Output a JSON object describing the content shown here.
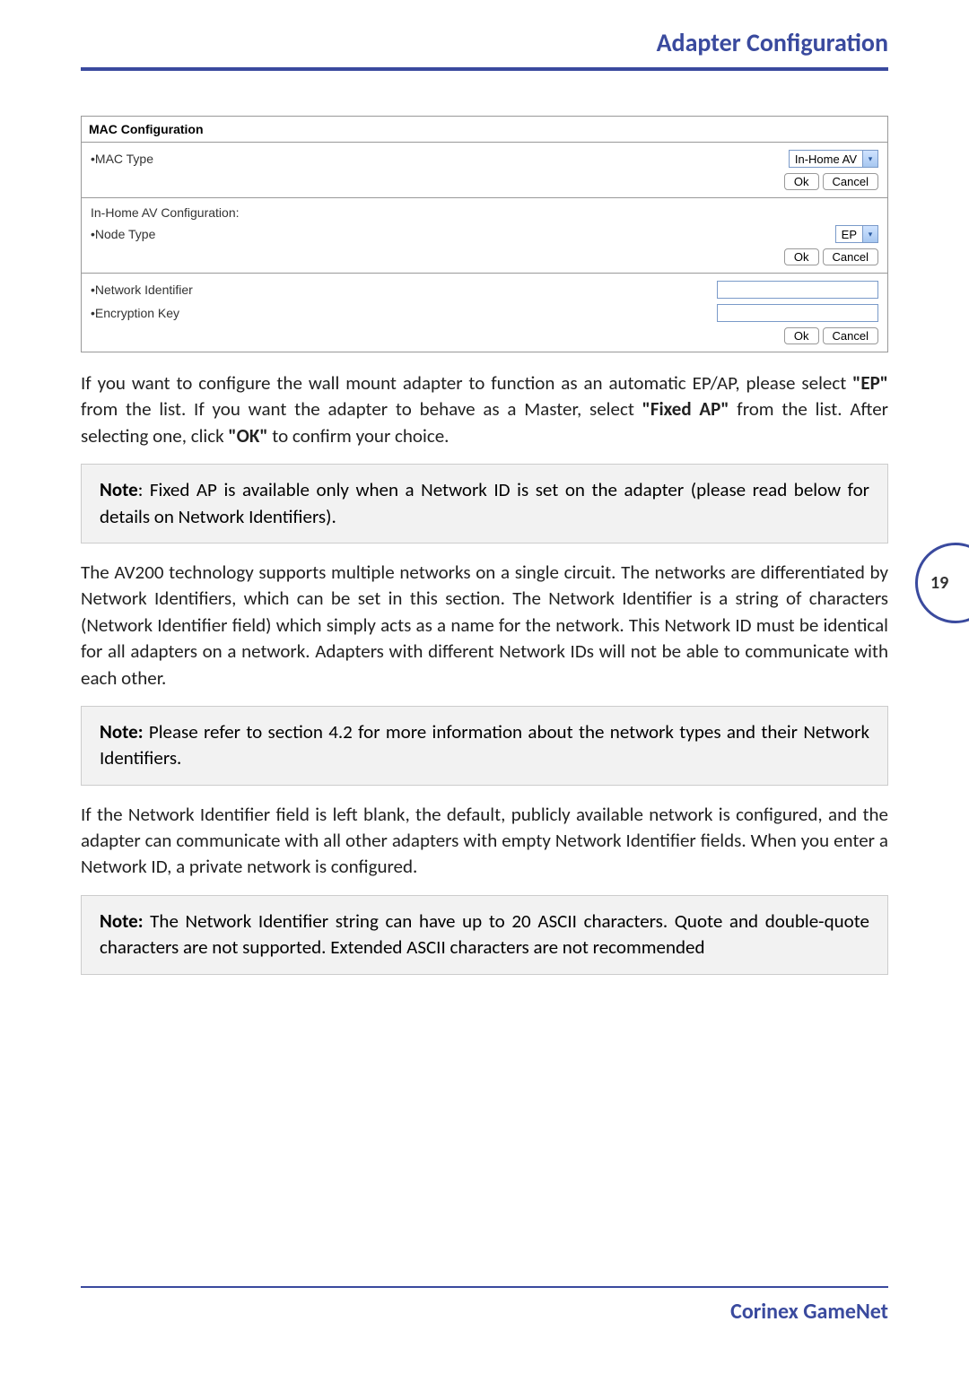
{
  "header": {
    "title": "Adapter Configuration"
  },
  "mac_panel": {
    "title": "MAC Configuration",
    "mac_type_label": "•MAC Type",
    "mac_type_value": "In-Home AV",
    "subsection_label": "In-Home AV Configuration:",
    "node_type_label": "•Node Type",
    "node_type_value": "EP",
    "network_id_label": "•Network Identifier",
    "encryption_key_label": "•Encryption Key",
    "ok_label": "Ok",
    "cancel_label": "Cancel"
  },
  "paragraphs": {
    "p1_a": "If you want to configure the wall mount adapter to function as an automatic EP/AP, please select ",
    "p1_b": "\"EP\"",
    "p1_c": " from the list. If you want the adapter to behave as a Master, select ",
    "p1_d": "\"Fixed AP\"",
    "p1_e": " from the list. After selecting one, click ",
    "p1_f": "\"OK\"",
    "p1_g": " to confirm your choice.",
    "note1_bold": "Note",
    "note1_text": ": Fixed AP is available only when a Network ID is set on the adapter (please read below for details on Network Identifiers).",
    "p2": "The AV200 technology supports multiple networks on a single circuit. The networks are differentiated by Network Identifiers, which can be set in this section. The Network Identifier is a string of characters (Network Identifier field) which simply acts as a name for the network. This Network ID must be identical for all adapters on a network. Adapters with different Network IDs will not be able to communicate with each other.",
    "note2_bold": "Note:",
    "note2_text": " Please refer to section 4.2 for more information about the network types and their Network Identifiers.",
    "p3": "If the Network Identifier field is left blank, the default, publicly available network is configured, and the adapter can communicate with all other adapters with empty Network Identifier fields. When you enter a Network ID, a private network is configured.",
    "note3_bold": "Note:",
    "note3_text": " The Network Identifier string can have up to 20 ASCII characters. Quote and double-quote characters are not supported. Extended ASCII characters are not recommended"
  },
  "page_number": "19",
  "footer": {
    "text": "Corinex GameNet"
  }
}
